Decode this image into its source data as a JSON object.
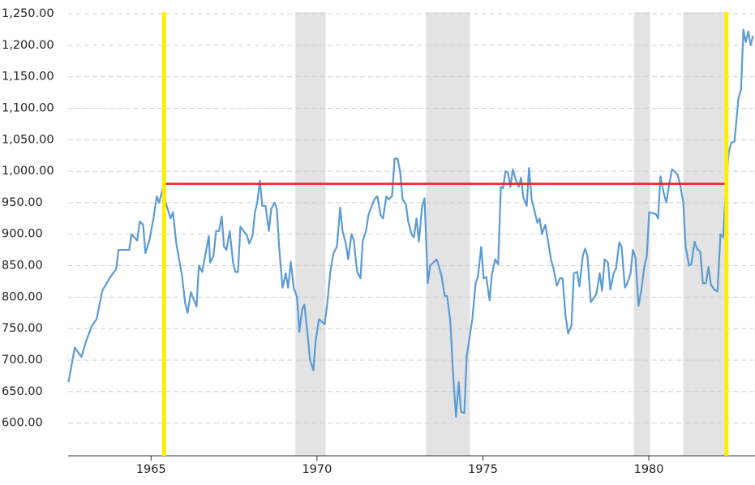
{
  "chart_data": {
    "type": "line",
    "x": [
      1962.51,
      1962.7,
      1962.9,
      1963.04,
      1963.22,
      1963.36,
      1963.53,
      1963.75,
      1963.95,
      1964.02,
      1964.34,
      1964.41,
      1964.58,
      1964.66,
      1964.76,
      1964.83,
      1964.95,
      1965.07,
      1965.17,
      1965.24,
      1965.37,
      1965.44,
      1965.59,
      1965.66,
      1965.76,
      1965.93,
      1966.03,
      1966.1,
      1966.2,
      1966.37,
      1966.44,
      1966.54,
      1966.74,
      1966.78,
      1966.88,
      1966.96,
      1967.05,
      1967.13,
      1967.2,
      1967.27,
      1967.37,
      1967.47,
      1967.54,
      1967.62,
      1967.69,
      1967.89,
      1967.96,
      1968.06,
      1968.13,
      1968.2,
      1968.28,
      1968.35,
      1968.45,
      1968.55,
      1968.62,
      1968.72,
      1968.79,
      1968.86,
      1968.96,
      1969.06,
      1969.13,
      1969.21,
      1969.3,
      1969.4,
      1969.47,
      1969.55,
      1969.62,
      1969.72,
      1969.79,
      1969.89,
      1969.96,
      1970.06,
      1970.23,
      1970.31,
      1970.4,
      1970.5,
      1970.6,
      1970.7,
      1970.77,
      1970.87,
      1970.94,
      1971.04,
      1971.11,
      1971.21,
      1971.31,
      1971.38,
      1971.48,
      1971.55,
      1971.65,
      1971.75,
      1971.82,
      1971.92,
      1971.99,
      1972.09,
      1972.16,
      1972.26,
      1972.34,
      1972.43,
      1972.51,
      1972.58,
      1972.68,
      1972.75,
      1972.85,
      1972.92,
      1973.0,
      1973.07,
      1973.17,
      1973.24,
      1973.34,
      1973.41,
      1973.61,
      1973.75,
      1973.85,
      1973.92,
      1974.02,
      1974.1,
      1974.19,
      1974.27,
      1974.34,
      1974.44,
      1974.51,
      1974.61,
      1974.68,
      1974.78,
      1974.85,
      1974.95,
      1975.02,
      1975.1,
      1975.2,
      1975.27,
      1975.37,
      1975.46,
      1975.54,
      1975.61,
      1975.68,
      1975.76,
      1975.83,
      1975.9,
      1976.0,
      1976.08,
      1976.15,
      1976.22,
      1976.32,
      1976.39,
      1976.47,
      1976.54,
      1976.64,
      1976.71,
      1976.78,
      1976.88,
      1976.96,
      1977.05,
      1977.13,
      1977.23,
      1977.32,
      1977.4,
      1977.49,
      1977.57,
      1977.67,
      1977.74,
      1977.84,
      1977.91,
      1978.01,
      1978.08,
      1978.15,
      1978.25,
      1978.42,
      1978.52,
      1978.59,
      1978.67,
      1978.77,
      1978.84,
      1978.94,
      1979.01,
      1979.11,
      1979.18,
      1979.28,
      1979.35,
      1979.45,
      1979.52,
      1979.6,
      1979.69,
      1979.77,
      1979.87,
      1979.94,
      1980.01,
      1980.21,
      1980.28,
      1980.35,
      1980.45,
      1980.53,
      1980.6,
      1980.7,
      1980.77,
      1980.87,
      1980.94,
      1981.04,
      1981.11,
      1981.21,
      1981.28,
      1981.38,
      1981.46,
      1981.55,
      1981.63,
      1981.72,
      1981.8,
      1981.87,
      1981.97,
      1982.07,
      1982.16,
      1982.24,
      1982.34,
      1982.41,
      1982.48,
      1982.58,
      1982.63,
      1982.7,
      1982.78,
      1982.85,
      1982.92,
      1983.0,
      1983.07,
      1983.14
    ],
    "values": [
      665,
      720,
      705,
      730,
      755,
      765,
      810,
      830,
      845,
      875,
      875,
      900,
      890,
      920,
      915,
      870,
      890,
      925,
      960,
      950,
      975,
      950,
      925,
      935,
      885,
      835,
      790,
      775,
      808,
      785,
      850,
      840,
      897,
      855,
      865,
      905,
      905,
      928,
      880,
      875,
      905,
      855,
      840,
      840,
      912,
      898,
      885,
      898,
      935,
      950,
      985,
      945,
      945,
      905,
      940,
      950,
      940,
      880,
      815,
      838,
      815,
      856,
      815,
      800,
      745,
      780,
      788,
      740,
      700,
      684,
      730,
      765,
      757,
      790,
      840,
      870,
      880,
      942,
      905,
      885,
      860,
      900,
      890,
      840,
      830,
      890,
      905,
      930,
      945,
      957,
      960,
      930,
      925,
      960,
      955,
      960,
      1020,
      1020,
      997,
      955,
      948,
      920,
      900,
      895,
      925,
      888,
      945,
      957,
      822,
      850,
      860,
      835,
      802,
      802,
      760,
      680,
      610,
      665,
      618,
      616,
      705,
      740,
      765,
      822,
      832,
      880,
      830,
      832,
      795,
      835,
      860,
      852,
      975,
      973,
      1000,
      997,
      975,
      1003,
      985,
      975,
      990,
      958,
      945,
      1005,
      955,
      940,
      918,
      925,
      900,
      915,
      890,
      860,
      845,
      818,
      830,
      830,
      770,
      742,
      755,
      838,
      840,
      817,
      865,
      877,
      866,
      792,
      805,
      838,
      810,
      860,
      855,
      812,
      838,
      845,
      887,
      880,
      815,
      822,
      838,
      875,
      862,
      786,
      810,
      850,
      865,
      935,
      932,
      925,
      992,
      965,
      950,
      975,
      1003,
      1000,
      994,
      980,
      950,
      880,
      850,
      852,
      888,
      876,
      872,
      822,
      822,
      848,
      820,
      812,
      809,
      900,
      895,
      990,
      1030,
      1045,
      1047,
      1075,
      1115,
      1130,
      1225,
      1205,
      1222,
      1200,
      1215
    ],
    "color": "#5b9bd5",
    "xlim": [
      1962.5,
      1983.2
    ],
    "xticks": [
      1965,
      1970,
      1975,
      1980
    ],
    "ylim": [
      548,
      1250
    ],
    "yticks": [
      {
        "value": 600,
        "label": "600.00"
      },
      {
        "value": 650,
        "label": "650.00"
      },
      {
        "value": 700,
        "label": "700.00"
      },
      {
        "value": 750,
        "label": "750.00"
      },
      {
        "value": 800,
        "label": "800.00"
      },
      {
        "value": 850,
        "label": "850.00"
      },
      {
        "value": 900,
        "label": "900.00"
      },
      {
        "value": 950,
        "label": "950.00"
      },
      {
        "value": 1000,
        "label": "1,000.00"
      },
      {
        "value": 1050,
        "label": "1,050.00"
      },
      {
        "value": 1100,
        "label": "1,100.00"
      },
      {
        "value": 1150,
        "label": "1,150.00"
      },
      {
        "value": 1200,
        "label": "1,200.00"
      },
      {
        "value": 1250,
        "label": "1,250.00"
      }
    ],
    "grid": true,
    "shaded_ranges": [
      [
        1969.35,
        1970.26
      ],
      [
        1973.29,
        1974.61
      ],
      [
        1979.55,
        1980.04
      ],
      [
        1981.04,
        1982.29
      ]
    ],
    "shade_color": "#e3e3e3",
    "vlines": [
      1965.39,
      1982.34
    ],
    "vline_color": "#ffee00",
    "hline": 980,
    "hline_color": "#e8211f"
  }
}
